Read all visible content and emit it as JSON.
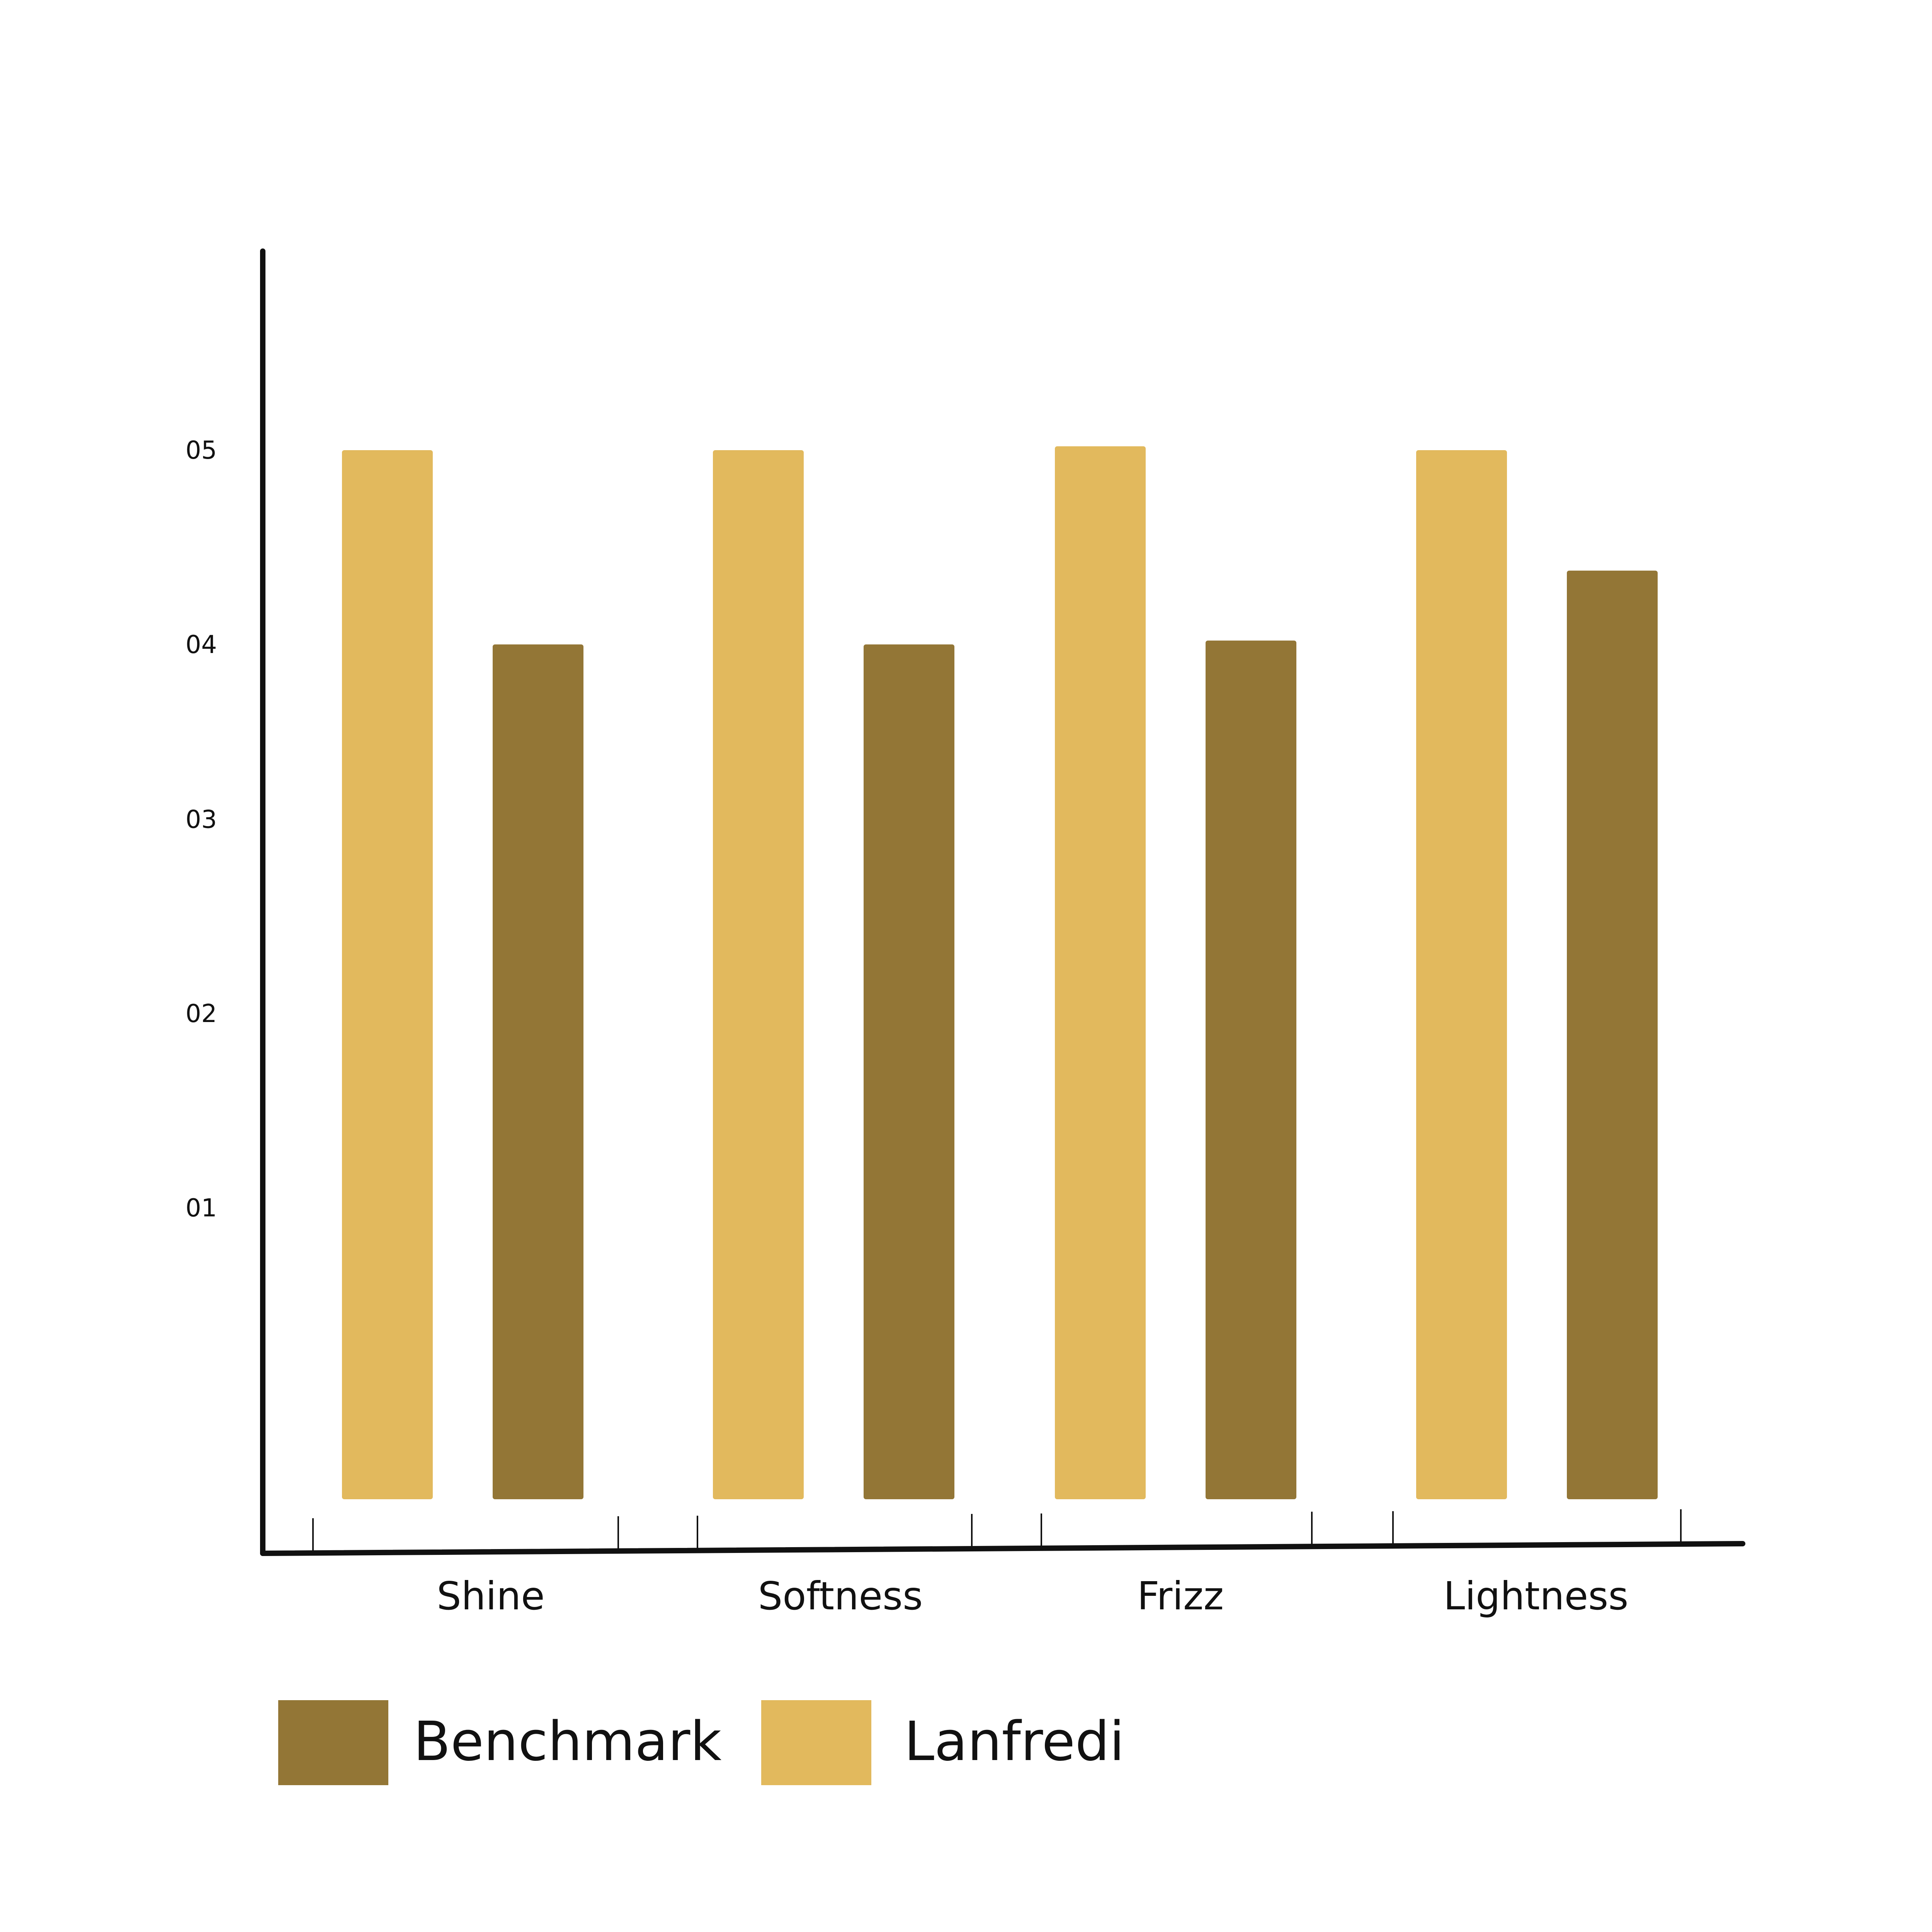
{
  "colors": {
    "benchmark": "#937636",
    "lanfredi": "#E2B95D",
    "axis": "#111111"
  },
  "chart_data": {
    "type": "bar",
    "categories": [
      "Shine",
      "Softness",
      "Frizz",
      "Lightness"
    ],
    "y_ticks": [
      "01",
      "02",
      "03",
      "04",
      "05"
    ],
    "y_tick_values": [
      1.5,
      2.5,
      3.5,
      4.4,
      5.4
    ],
    "ylim": [
      0,
      5.4
    ],
    "series": [
      {
        "name": "Lanfredi",
        "values": [
          5.4,
          5.4,
          5.42,
          5.4
        ]
      },
      {
        "name": "Benchmark",
        "values": [
          4.4,
          4.4,
          4.42,
          4.78
        ]
      }
    ],
    "legend": [
      "Benchmark",
      "Lanfredi"
    ],
    "legend_position": "bottom-left",
    "grid": false,
    "title": "",
    "xlabel": "",
    "ylabel": ""
  }
}
